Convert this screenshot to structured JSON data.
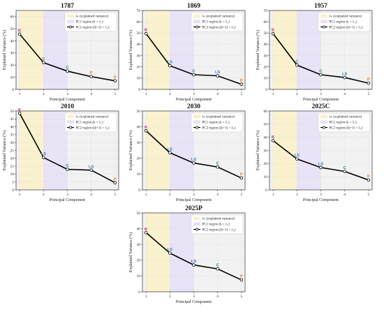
{
  "figure": {
    "background": "#ffffff"
  },
  "style": {
    "region_lambda_color": "#faf1cc",
    "region_pc1_color": "#e7e1f7",
    "plot_background": "#f2f2f2",
    "line_color": "#000000",
    "label_colors": {
      "K": "#c2187a",
      "C": "#1a8a73",
      "LS": "#2f7fc1",
      "P": "#f07f12"
    }
  },
  "legend": {
    "items": [
      {
        "label": "λₖ (explained variance)",
        "swatch": "region_lambda"
      },
      {
        "label": "PC1 region (k = λ₁)",
        "swatch": "region_pc1"
      },
      {
        "label": "PC2 region ((k+1) = λ₂)",
        "swatch": "line"
      }
    ],
    "placement": "top-right"
  },
  "chart_data": [
    {
      "type": "line",
      "title": "1787",
      "xlabel": "Principal Component",
      "ylabel": "Explained Variance (%)",
      "x": [
        1,
        2,
        3,
        4,
        5
      ],
      "y": [
        45.5,
        22.0,
        15.0,
        10.5,
        7.0
      ],
      "point_labels": [
        "K",
        "C",
        "C",
        "P",
        "P"
      ],
      "ylim": [
        0,
        65
      ],
      "yticks": [
        0,
        10,
        20,
        30,
        40,
        50,
        60
      ],
      "xticks": [
        1,
        2,
        3,
        4,
        5
      ],
      "grid": true,
      "shaded_regions": [
        [
          1,
          2
        ],
        [
          2,
          3
        ]
      ]
    },
    {
      "type": "line",
      "title": "1869",
      "xlabel": "Principal Component",
      "ylabel": "Explained Variance (%)",
      "x": [
        1,
        2,
        3,
        4,
        5
      ],
      "y": [
        49.5,
        21.0,
        13.0,
        12.0,
        4.5
      ],
      "point_labels": [
        "K",
        "LS",
        "C",
        "LS",
        "P"
      ],
      "ylim": [
        0,
        70
      ],
      "yticks": [
        0,
        10,
        20,
        30,
        40,
        50,
        60,
        70
      ],
      "xticks": [
        1,
        2,
        3,
        4,
        5
      ],
      "grid": true,
      "shaded_regions": [
        [
          1,
          2
        ],
        [
          2,
          3
        ]
      ]
    },
    {
      "type": "line",
      "title": "1957",
      "xlabel": "Principal Component",
      "ylabel": "Explained Variance (%)",
      "x": [
        1,
        2,
        3,
        4,
        5
      ],
      "y": [
        49.5,
        21.5,
        13.0,
        10.5,
        5.5
      ],
      "point_labels": [
        "K",
        "C",
        "C",
        "LS",
        "P"
      ],
      "ylim": [
        0,
        70
      ],
      "yticks": [
        0,
        10,
        20,
        30,
        40,
        50,
        60,
        70
      ],
      "xticks": [
        1,
        2,
        3,
        4,
        5
      ],
      "grid": true,
      "shaded_regions": [
        [
          1,
          2
        ],
        [
          2,
          3
        ]
      ]
    },
    {
      "type": "line",
      "title": "2010",
      "xlabel": "Principal Component",
      "ylabel": "Explained Variance (%)",
      "x": [
        1,
        2,
        3,
        4,
        5
      ],
      "y": [
        48.5,
        20.5,
        13.0,
        12.5,
        4.5
      ],
      "point_labels": [
        "K",
        "LS",
        "C",
        "LS",
        "P"
      ],
      "ylim": [
        0,
        50
      ],
      "yticks": [
        0,
        5,
        10,
        15,
        20,
        25,
        30,
        35,
        40,
        45,
        50
      ],
      "xticks": [
        1,
        2,
        3,
        4,
        5
      ],
      "grid": true,
      "shaded_regions": [
        [
          1,
          2
        ],
        [
          2,
          3
        ]
      ]
    },
    {
      "type": "line",
      "title": "2030",
      "xlabel": "Principal Component",
      "ylabel": "Explained Variance (%)",
      "x": [
        1,
        2,
        3,
        4,
        5
      ],
      "y": [
        37.5,
        23.5,
        17.0,
        14.5,
        7.5
      ],
      "point_labels": [
        "K",
        "LS",
        "LS",
        "C",
        "P"
      ],
      "ylim": [
        0,
        50
      ],
      "yticks": [
        0,
        10,
        20,
        30,
        40,
        50
      ],
      "xticks": [
        1,
        2,
        3,
        4,
        5
      ],
      "grid": true,
      "shaded_regions": [
        [
          1,
          2
        ],
        [
          2,
          3
        ]
      ]
    },
    {
      "type": "line",
      "title": "2025C",
      "xlabel": "Principal Component",
      "ylabel": "Explained Variance (%)",
      "x": [
        1,
        2,
        3,
        4,
        5
      ],
      "y": [
        37.5,
        23.5,
        17.0,
        14.0,
        7.5
      ],
      "point_labels": [
        "K",
        "LS",
        "LS",
        "C",
        "P"
      ],
      "ylim": [
        0,
        60
      ],
      "yticks": [
        0,
        10,
        20,
        30,
        40,
        50,
        60
      ],
      "xticks": [
        1,
        2,
        3,
        4,
        5
      ],
      "grid": true,
      "shaded_regions": [
        [
          1,
          2
        ],
        [
          2,
          3
        ]
      ]
    },
    {
      "type": "line",
      "title": "2025P",
      "xlabel": "Principal Component",
      "ylabel": "Explained Variance (%)",
      "x": [
        1,
        2,
        3,
        4,
        5
      ],
      "y": [
        37.5,
        24.5,
        17.0,
        14.5,
        7.5
      ],
      "point_labels": [
        "K",
        "LS",
        "LS",
        "C",
        "P"
      ],
      "ylim": [
        0,
        50
      ],
      "yticks": [
        0,
        10,
        20,
        30,
        40,
        50
      ],
      "xticks": [
        1,
        2,
        3,
        4,
        5
      ],
      "grid": true,
      "shaded_regions": [
        [
          1,
          2
        ],
        [
          2,
          3
        ]
      ]
    }
  ]
}
